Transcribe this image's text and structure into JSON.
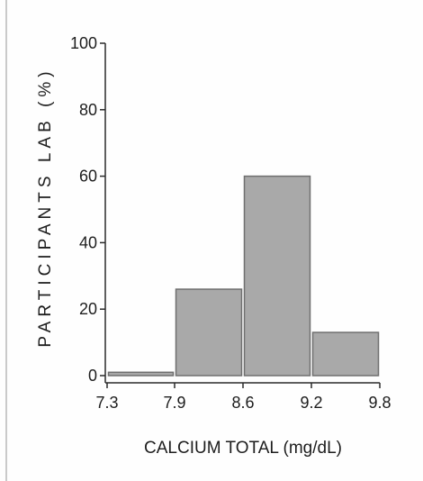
{
  "chart_data": {
    "type": "bar",
    "title": "",
    "xlabel": "CALCIUM TOTAL  (mg/dL)",
    "ylabel": "PARTICIPANTS LAB (%)",
    "x_ticks": [
      "7.3",
      "7.9",
      "8.6",
      "9.2",
      "9.8"
    ],
    "y_ticks": [
      "0",
      "20",
      "40",
      "60",
      "80",
      "100"
    ],
    "ylim": [
      0,
      100
    ],
    "bins": [
      {
        "from": "7.3",
        "to": "7.9",
        "value": 1
      },
      {
        "from": "7.9",
        "to": "8.6",
        "value": 26
      },
      {
        "from": "8.6",
        "to": "9.2",
        "value": 60
      },
      {
        "from": "9.2",
        "to": "9.8",
        "value": 13
      }
    ],
    "grid": false,
    "legend": "none"
  },
  "colors": {
    "bar_fill": "#a9a9a9",
    "bar_stroke": "#6f6f6f",
    "axis": "#2a2a2a",
    "text": "#1d1d1d"
  }
}
